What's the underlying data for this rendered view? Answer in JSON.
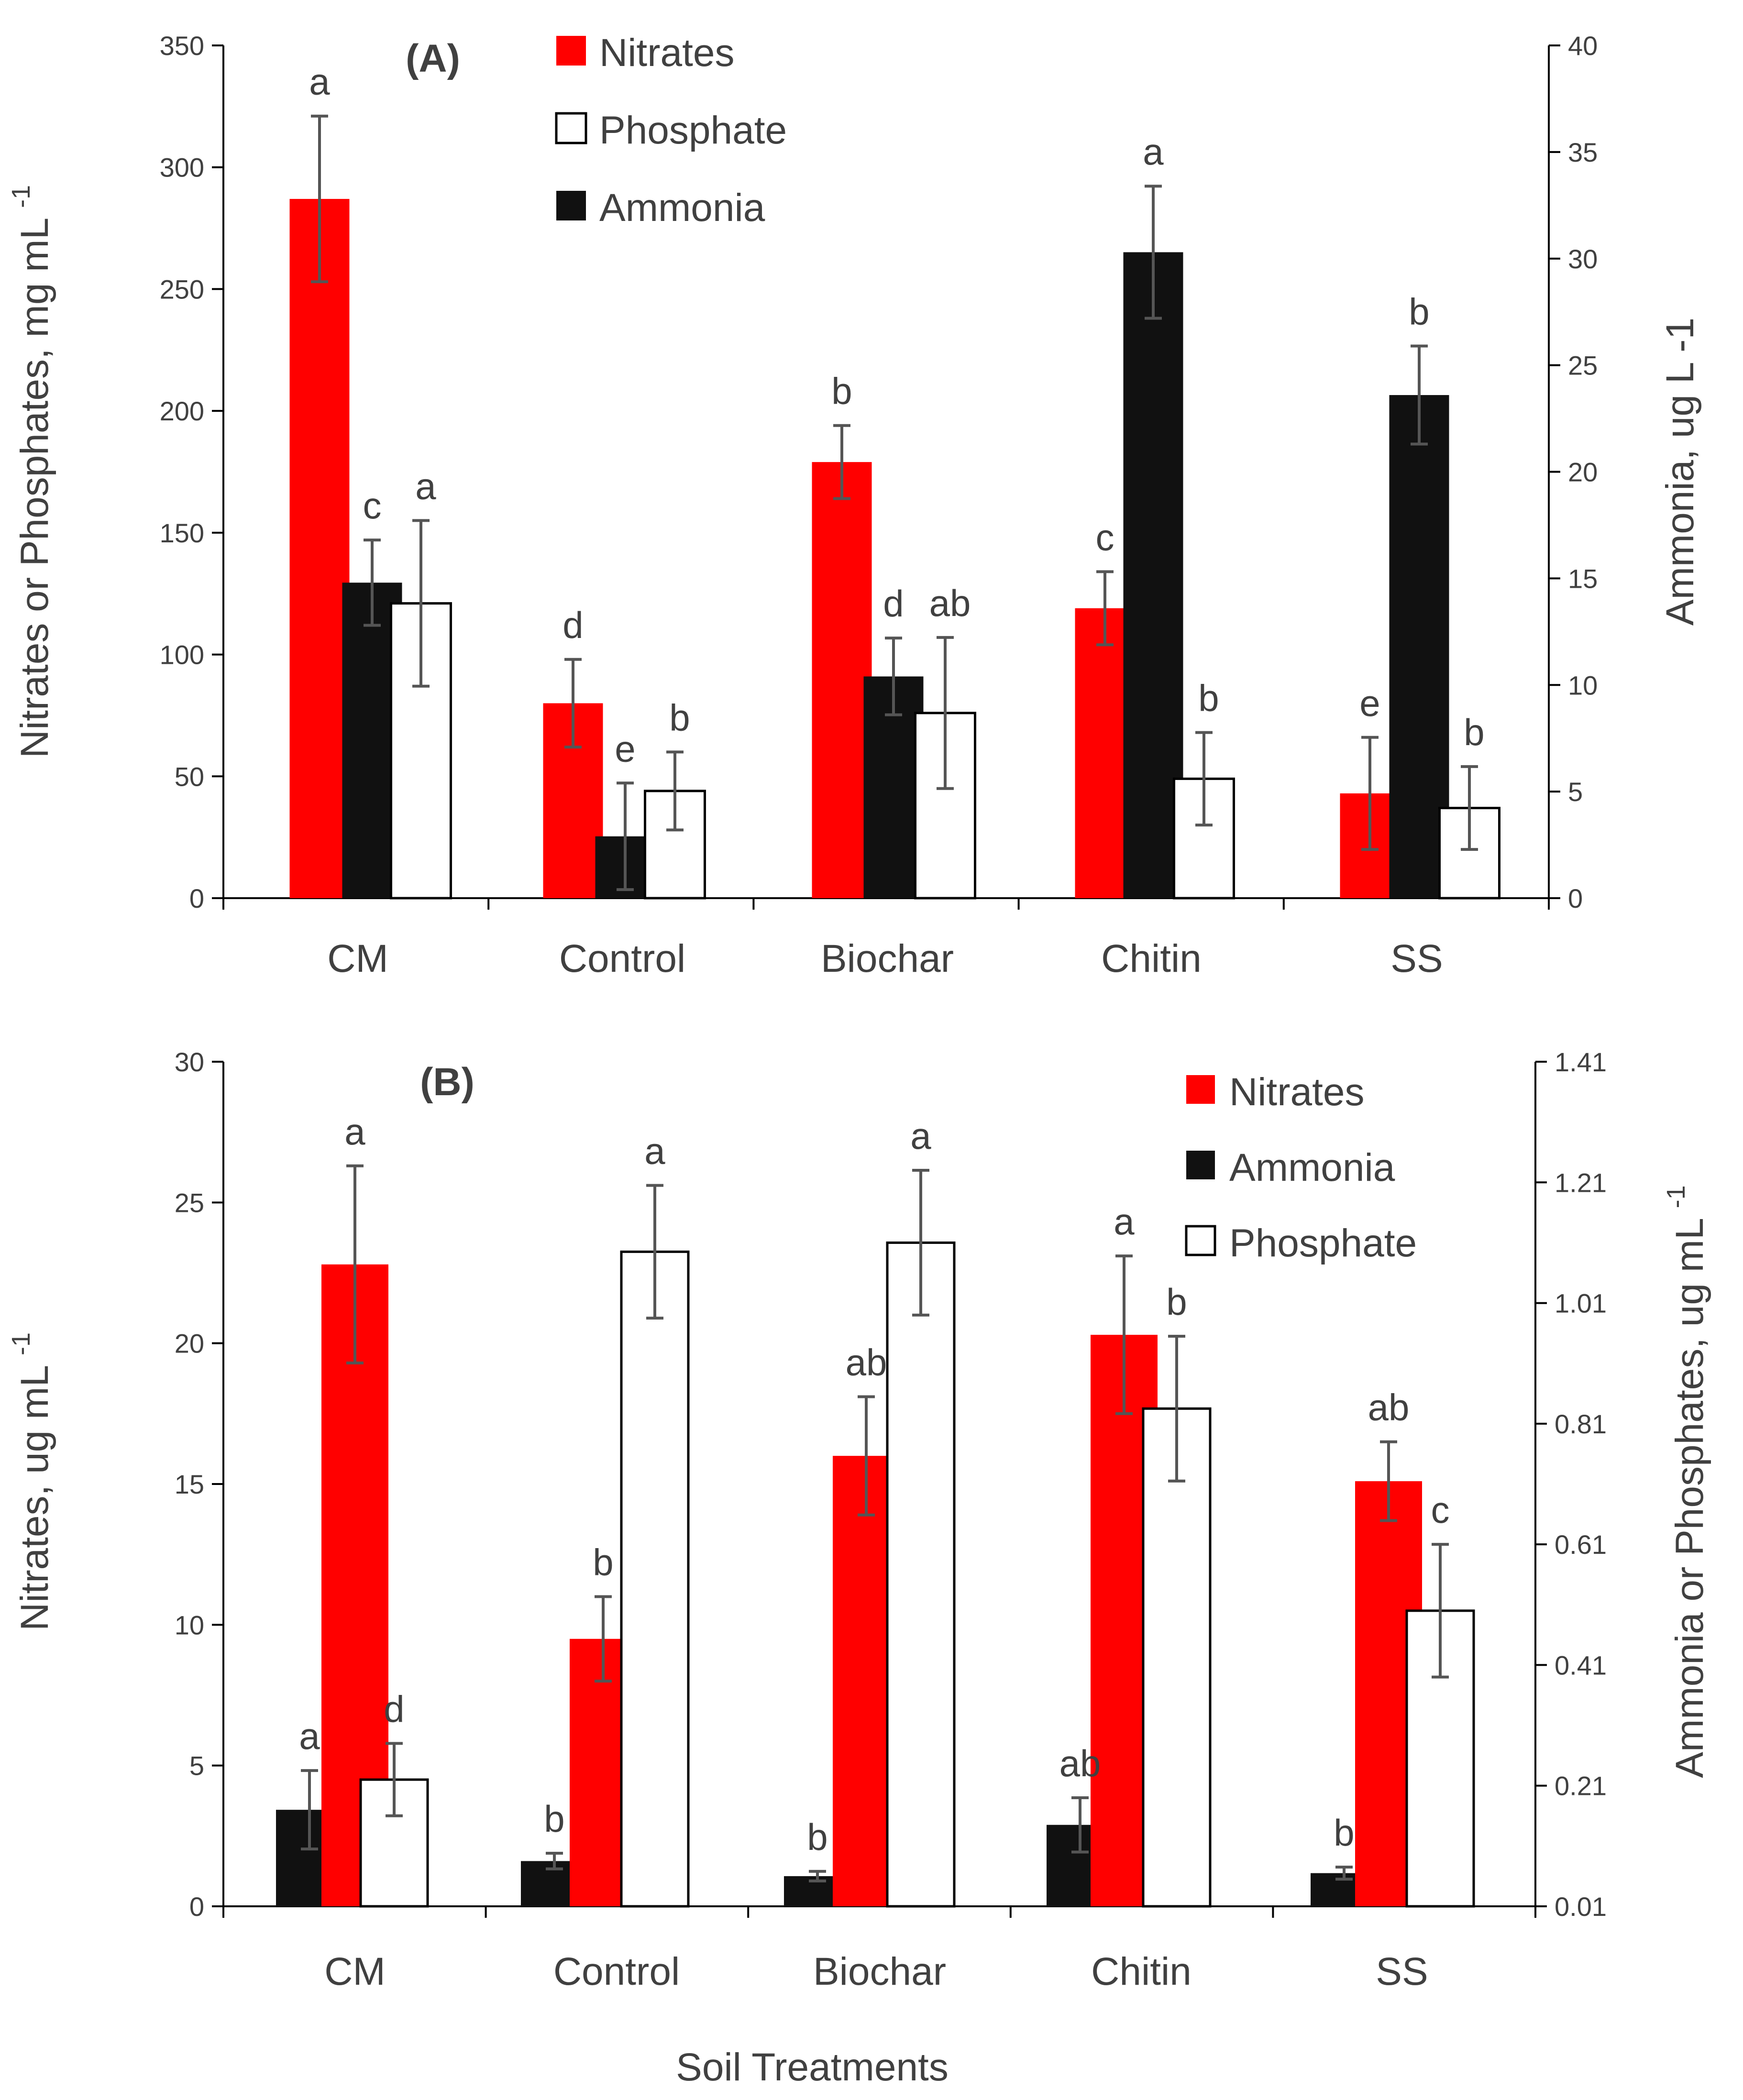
{
  "figure": {
    "xlabel": "Soil Treatments"
  },
  "chart_data": [
    {
      "type": "bar",
      "panel_label": "(A)",
      "categories": [
        "CM",
        "Control",
        "Biochar",
        "Chitin",
        "SS"
      ],
      "y_left": {
        "label": "Nitrates or Phosphates, mg mL",
        "superscript": "-1",
        "ylim": [
          0,
          350
        ],
        "ticks": [
          0,
          50,
          100,
          150,
          200,
          250,
          300,
          350
        ]
      },
      "y_right": {
        "label": "Ammonia,  ug L -1",
        "ylim": [
          0,
          40
        ],
        "ticks": [
          0,
          5,
          10,
          15,
          20,
          25,
          30,
          35,
          40
        ]
      },
      "series": [
        {
          "name": "Nitrates",
          "axis": "left",
          "color": "#ff0000",
          "stroke": "none",
          "values": [
            287,
            80,
            179,
            119,
            43
          ],
          "errors": [
            34,
            18,
            15,
            15,
            23
          ],
          "letters": [
            "a",
            "d",
            "b",
            "c",
            "e"
          ],
          "bar_order": [
            0,
            0,
            0,
            0,
            0
          ]
        },
        {
          "name": "Ammonia",
          "axis": "right",
          "color": "#111111",
          "stroke": "none",
          "values": [
            14.8,
            2.9,
            10.4,
            30.3,
            23.6
          ],
          "errors": [
            2.0,
            2.5,
            1.8,
            3.1,
            2.3
          ],
          "letters": [
            "c",
            "e",
            "d",
            "a",
            "b"
          ],
          "bar_order": [
            1,
            1,
            1,
            1,
            1
          ]
        },
        {
          "name": "Phosphate",
          "axis": "left",
          "color": "#ffffff",
          "stroke": "#000000",
          "values": [
            121,
            44,
            76,
            49,
            37
          ],
          "errors": [
            34,
            16,
            31,
            19,
            17
          ],
          "letters": [
            "a",
            "b",
            "ab",
            "b",
            "b"
          ],
          "bar_order": [
            2,
            2,
            2,
            2,
            2
          ]
        }
      ],
      "legend": [
        {
          "name": "Nitrates",
          "color": "#ff0000",
          "stroke": "none"
        },
        {
          "name": "Phosphate",
          "color": "#ffffff",
          "stroke": "#000000"
        },
        {
          "name": "Ammonia",
          "color": "#111111",
          "stroke": "none"
        }
      ],
      "legend_position": "top-center"
    },
    {
      "type": "bar",
      "panel_label": "(B)",
      "categories": [
        "CM",
        "Control",
        "Biochar",
        "Chitin",
        "SS"
      ],
      "y_left": {
        "label": "Nitrates, ug mL",
        "superscript": "-1",
        "ylim": [
          0,
          30
        ],
        "ticks": [
          0,
          5,
          10,
          15,
          20,
          25,
          30
        ]
      },
      "y_right": {
        "label": "Ammonia  or Phosphates, ug mL",
        "superscript": "-1",
        "ylim": [
          0.01,
          1.41
        ],
        "ticks": [
          0.01,
          0.21,
          0.41,
          0.61,
          0.81,
          1.01,
          1.21,
          1.41
        ],
        "tick_labels": [
          "0.01",
          "0.21",
          "0.41",
          "0.61",
          "0.81",
          "1.01",
          "1.21",
          "1.41"
        ]
      },
      "series": [
        {
          "name": "Ammonia",
          "axis": "right",
          "color": "#111111",
          "stroke": "none",
          "values": [
            0.17,
            0.085,
            0.06,
            0.145,
            0.065
          ],
          "errors": [
            0.065,
            0.013,
            0.008,
            0.045,
            0.01
          ],
          "letters": [
            "a",
            "b",
            "b",
            "ab",
            "b"
          ],
          "bar_order": [
            0,
            0,
            0,
            0,
            0
          ]
        },
        {
          "name": "Nitrates",
          "axis": "left",
          "color": "#ff0000",
          "stroke": "none",
          "values": [
            22.8,
            9.5,
            16.0,
            20.3,
            15.1
          ],
          "errors": [
            3.5,
            1.5,
            2.1,
            2.8,
            1.4
          ],
          "letters": [
            "a",
            "b",
            "ab",
            "a",
            "ab"
          ],
          "bar_order": [
            0,
            1,
            1,
            1,
            1
          ]
        },
        {
          "name": "Phosphate",
          "axis": "right",
          "color": "#ffffff",
          "stroke": "#000000",
          "values": [
            0.22,
            1.095,
            1.11,
            0.835,
            0.5
          ],
          "errors": [
            0.06,
            0.11,
            0.12,
            0.12,
            0.11
          ],
          "letters": [
            "d",
            "a",
            "a",
            "b",
            "c"
          ],
          "bar_order": [
            1,
            2,
            2,
            2,
            2
          ]
        }
      ],
      "legend": [
        {
          "name": "Nitrates",
          "color": "#ff0000",
          "stroke": "none"
        },
        {
          "name": "Ammonia",
          "color": "#111111",
          "stroke": "none"
        },
        {
          "name": "Phosphate",
          "color": "#ffffff",
          "stroke": "#000000"
        }
      ],
      "legend_position": "top-right"
    }
  ]
}
